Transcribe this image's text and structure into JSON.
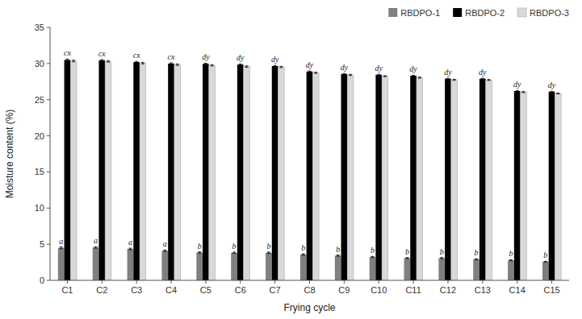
{
  "chart_data": {
    "type": "bar",
    "categories": [
      "C1",
      "C2",
      "C3",
      "C4",
      "C5",
      "C6",
      "C7",
      "C8",
      "C9",
      "C10",
      "C11",
      "C12",
      "C13",
      "C14",
      "C15"
    ],
    "series": [
      {
        "name": "RBDPO-1",
        "color": "#7f7f7f",
        "values": [
          4.5,
          4.55,
          4.35,
          4.1,
          3.85,
          3.82,
          3.82,
          3.58,
          3.42,
          3.22,
          3.08,
          3.08,
          2.92,
          2.78,
          2.58
        ],
        "errors": [
          0.12,
          0.1,
          0.1,
          0.1,
          0.09,
          0.09,
          0.09,
          0.08,
          0.08,
          0.07,
          0.07,
          0.07,
          0.07,
          0.07,
          0.06
        ],
        "annotations": [
          "a",
          "a",
          "a",
          "a",
          "b",
          "b",
          "b",
          "b",
          "b",
          "b",
          "b",
          "b",
          "b",
          "b",
          "b"
        ]
      },
      {
        "name": "RBDPO-2",
        "color": "#000000",
        "values": [
          30.5,
          30.45,
          30.2,
          30.0,
          29.95,
          29.85,
          29.65,
          28.9,
          28.55,
          28.45,
          28.3,
          27.9,
          27.9,
          26.2,
          26.1
        ],
        "errors": [
          0.12,
          0.1,
          0.1,
          0.1,
          0.09,
          0.09,
          0.09,
          0.08,
          0.08,
          0.07,
          0.07,
          0.07,
          0.07,
          0.07,
          0.06
        ],
        "annotations": [
          "cx",
          "cx",
          "cx",
          "cx",
          "dy",
          "dy",
          "dy",
          "dy",
          "dy",
          "dy",
          "dy",
          "dy",
          "dy",
          "dy",
          "dy"
        ]
      },
      {
        "name": "RBDPO-3",
        "color": "#d9d9d9",
        "values": [
          30.35,
          30.3,
          30.05,
          29.85,
          29.75,
          29.58,
          29.52,
          28.72,
          28.42,
          28.25,
          28.05,
          27.75,
          27.72,
          26.05,
          25.85
        ],
        "errors": [
          0.12,
          0.1,
          0.1,
          0.1,
          0.09,
          0.09,
          0.09,
          0.08,
          0.08,
          0.07,
          0.07,
          0.07,
          0.07,
          0.07,
          0.06
        ]
      }
    ],
    "xlabel": "Frying cycle",
    "ylabel": "Moisture content (%)",
    "ylim": [
      0,
      35
    ],
    "yticks": [
      0,
      5,
      10,
      15,
      20,
      25,
      30,
      35
    ],
    "grid": false,
    "legend": "upper right"
  }
}
